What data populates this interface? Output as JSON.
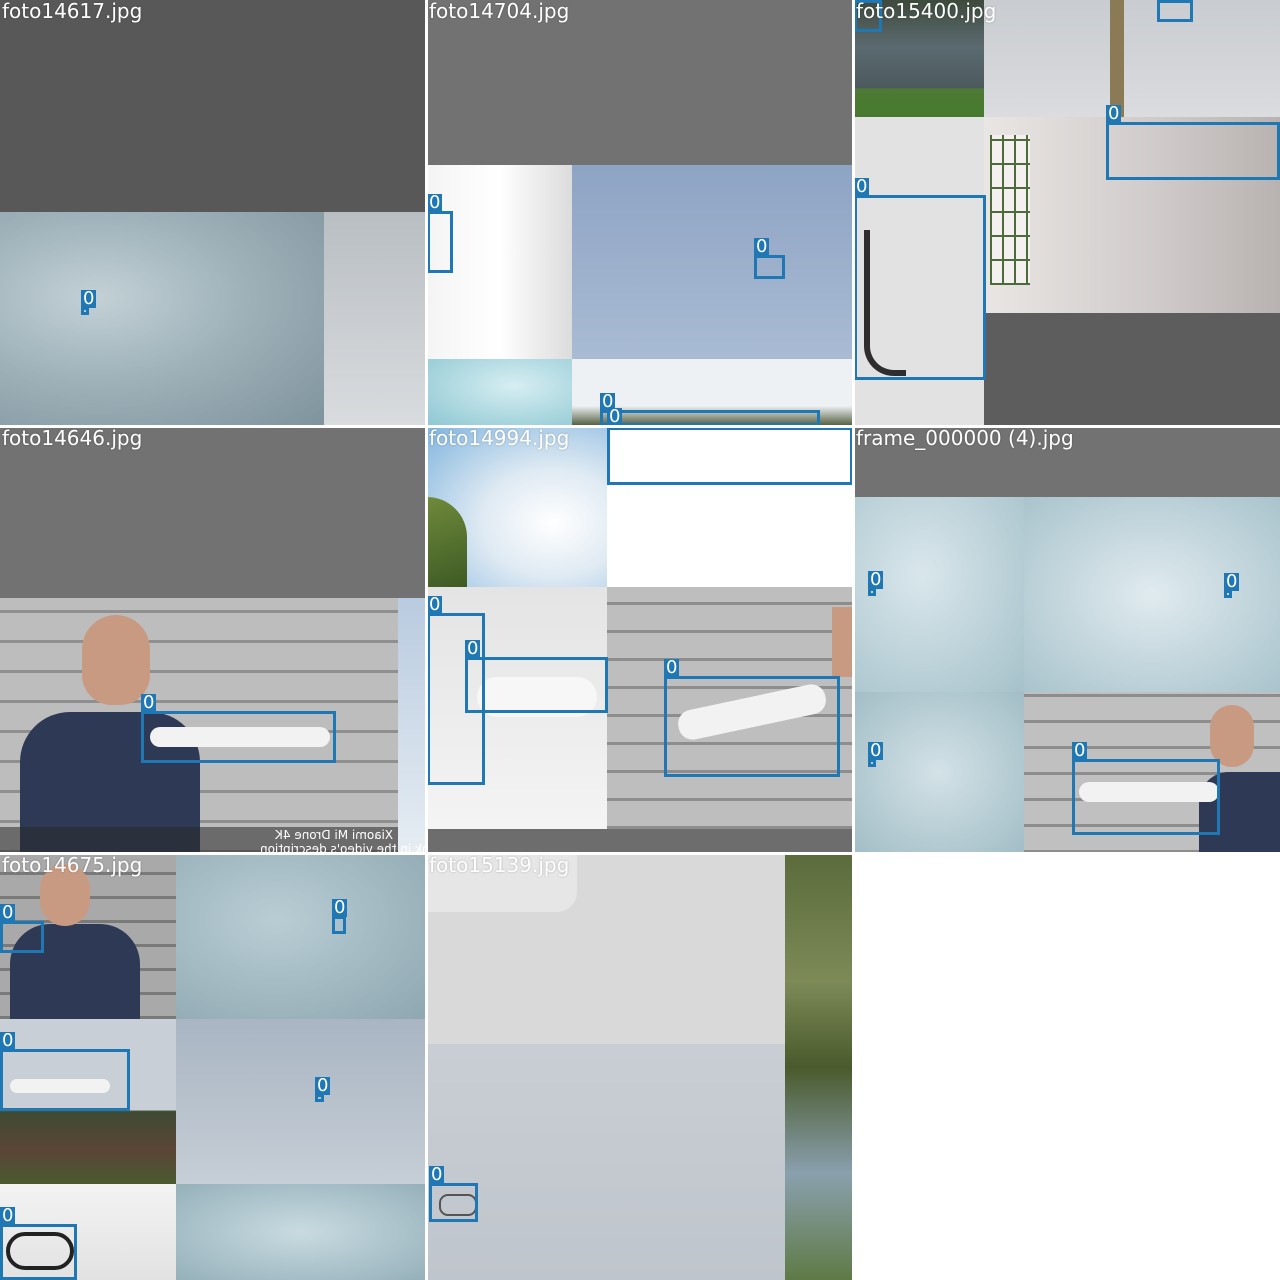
{
  "mosaic": {
    "tiles": [
      {
        "name": "foto14617.jpg",
        "boxes": [
          {
            "class_label": "0"
          }
        ]
      },
      {
        "name": "foto14704.jpg",
        "boxes": [
          {
            "class_label": "0"
          },
          {
            "class_label": "0"
          },
          {
            "class_label": "0"
          },
          {
            "class_label": "0"
          }
        ]
      },
      {
        "name": "foto15400.jpg",
        "boxes": [
          {
            "class_label": "0"
          },
          {
            "class_label": "0"
          },
          {
            "class_label": "0"
          }
        ]
      },
      {
        "name": "foto14646.jpg",
        "boxes": [
          {
            "class_label": "0"
          }
        ],
        "caption_line1": "Xiaomi Mi Drone 4K",
        "caption_line2": "Link in the video's description"
      },
      {
        "name": "foto14994.jpg",
        "boxes": [
          {
            "class_label": "0"
          },
          {
            "class_label": "0"
          },
          {
            "class_label": "0"
          }
        ]
      },
      {
        "name": "frame_000000 (4).jpg",
        "boxes": [
          {
            "class_label": "0"
          },
          {
            "class_label": "0"
          },
          {
            "class_label": "0"
          },
          {
            "class_label": "0"
          }
        ]
      },
      {
        "name": "foto14675.jpg",
        "boxes": [
          {
            "class_label": "0"
          },
          {
            "class_label": "0"
          },
          {
            "class_label": "0"
          },
          {
            "class_label": "0"
          },
          {
            "class_label": "0"
          }
        ]
      },
      {
        "name": "foto15139.jpg",
        "boxes": [
          {
            "class_label": "0"
          }
        ]
      }
    ]
  },
  "colors": {
    "box": "#1f77b4",
    "label_text": "#ffffff",
    "padding_gray": "#727272"
  }
}
